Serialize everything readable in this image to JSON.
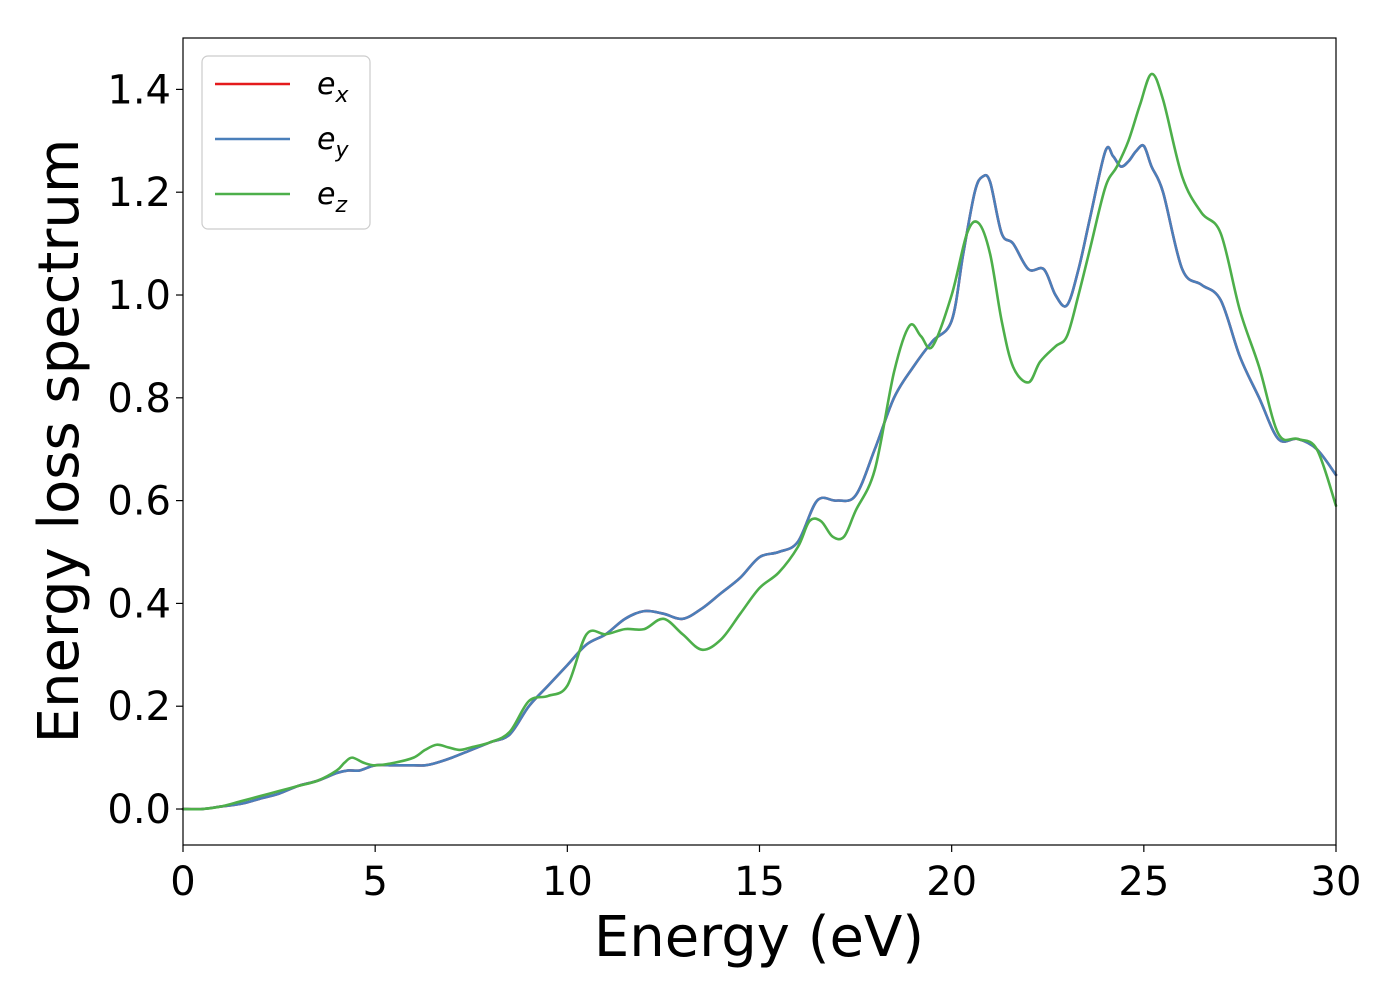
{
  "chart_data": {
    "type": "line",
    "xlabel": "Energy (eV)",
    "ylabel": "Energy loss spectrum",
    "xlim": [
      0,
      30
    ],
    "ylim": [
      -0.07,
      1.5
    ],
    "xticks": [
      0,
      5,
      10,
      15,
      20,
      25,
      30
    ],
    "yticks": [
      0.0,
      0.2,
      0.4,
      0.6,
      0.8,
      1.0,
      1.2,
      1.4
    ],
    "xtick_labels": [
      "0",
      "5",
      "10",
      "15",
      "20",
      "25",
      "30"
    ],
    "ytick_labels": [
      "0.0",
      "0.2",
      "0.4",
      "0.6",
      "0.8",
      "1.0",
      "1.2",
      "1.4"
    ],
    "grid": false,
    "legend_position": "top-left",
    "series": [
      {
        "name": "e_x",
        "legend_base": "e",
        "legend_sub": "x",
        "color": "#e41a1c",
        "x": [
          0,
          0.5,
          1,
          1.5,
          2,
          2.5,
          3,
          3.5,
          4,
          4.3,
          4.6,
          5,
          5.5,
          6,
          6.3,
          6.6,
          7,
          7.5,
          8,
          8.5,
          9,
          9.5,
          10,
          10.5,
          11,
          11.5,
          12,
          12.5,
          13,
          13.5,
          14,
          14.5,
          15,
          15.5,
          16,
          16.5,
          17,
          17.5,
          18,
          18.5,
          19,
          19.5,
          20,
          20.3,
          20.6,
          20.8,
          21,
          21.3,
          21.6,
          22,
          22.4,
          22.7,
          23,
          23.3,
          23.6,
          24,
          24.2,
          24.4,
          24.6,
          24.8,
          25,
          25.2,
          25.5,
          26,
          26.5,
          27,
          27.5,
          28,
          28.5,
          29,
          29.5,
          30
        ],
        "y": [
          0.0,
          0.0,
          0.005,
          0.01,
          0.02,
          0.03,
          0.045,
          0.055,
          0.07,
          0.075,
          0.075,
          0.085,
          0.085,
          0.085,
          0.085,
          0.09,
          0.1,
          0.115,
          0.13,
          0.145,
          0.2,
          0.24,
          0.28,
          0.32,
          0.34,
          0.37,
          0.385,
          0.38,
          0.37,
          0.39,
          0.42,
          0.45,
          0.49,
          0.5,
          0.52,
          0.6,
          0.6,
          0.61,
          0.7,
          0.8,
          0.86,
          0.91,
          0.95,
          1.08,
          1.2,
          1.23,
          1.22,
          1.12,
          1.1,
          1.05,
          1.05,
          1.0,
          0.98,
          1.05,
          1.15,
          1.28,
          1.27,
          1.25,
          1.26,
          1.28,
          1.29,
          1.25,
          1.2,
          1.05,
          1.02,
          0.99,
          0.88,
          0.8,
          0.72,
          0.72,
          0.7,
          0.65
        ]
      },
      {
        "name": "e_y",
        "legend_base": "e",
        "legend_sub": "y",
        "color": "#4a7fba",
        "x": [
          0,
          0.5,
          1,
          1.5,
          2,
          2.5,
          3,
          3.5,
          4,
          4.3,
          4.6,
          5,
          5.5,
          6,
          6.3,
          6.6,
          7,
          7.5,
          8,
          8.5,
          9,
          9.5,
          10,
          10.5,
          11,
          11.5,
          12,
          12.5,
          13,
          13.5,
          14,
          14.5,
          15,
          15.5,
          16,
          16.5,
          17,
          17.5,
          18,
          18.5,
          19,
          19.5,
          20,
          20.3,
          20.6,
          20.8,
          21,
          21.3,
          21.6,
          22,
          22.4,
          22.7,
          23,
          23.3,
          23.6,
          24,
          24.2,
          24.4,
          24.6,
          24.8,
          25,
          25.2,
          25.5,
          26,
          26.5,
          27,
          27.5,
          28,
          28.5,
          29,
          29.5,
          30
        ],
        "y": [
          0.0,
          0.0,
          0.005,
          0.01,
          0.02,
          0.03,
          0.045,
          0.055,
          0.07,
          0.075,
          0.075,
          0.085,
          0.085,
          0.085,
          0.085,
          0.09,
          0.1,
          0.115,
          0.13,
          0.145,
          0.2,
          0.24,
          0.28,
          0.32,
          0.34,
          0.37,
          0.385,
          0.38,
          0.37,
          0.39,
          0.42,
          0.45,
          0.49,
          0.5,
          0.52,
          0.6,
          0.6,
          0.61,
          0.7,
          0.8,
          0.86,
          0.91,
          0.95,
          1.08,
          1.2,
          1.23,
          1.22,
          1.12,
          1.1,
          1.05,
          1.05,
          1.0,
          0.98,
          1.05,
          1.15,
          1.28,
          1.27,
          1.25,
          1.26,
          1.28,
          1.29,
          1.25,
          1.2,
          1.05,
          1.02,
          0.99,
          0.88,
          0.8,
          0.72,
          0.72,
          0.7,
          0.65
        ]
      },
      {
        "name": "e_z",
        "legend_base": "e",
        "legend_sub": "z",
        "color": "#4daf4a",
        "x": [
          0,
          0.5,
          1,
          1.5,
          2,
          2.5,
          3,
          3.5,
          4,
          4.2,
          4.4,
          4.7,
          5,
          5.5,
          6,
          6.3,
          6.6,
          6.9,
          7.2,
          7.5,
          8,
          8.5,
          9,
          9.5,
          10,
          10.5,
          11,
          11.5,
          12,
          12.5,
          13,
          13.5,
          14,
          14.5,
          15,
          15.5,
          16,
          16.3,
          16.6,
          16.9,
          17.2,
          17.5,
          18,
          18.5,
          18.9,
          19.2,
          19.5,
          20,
          20.4,
          20.7,
          21,
          21.3,
          21.6,
          22,
          22.3,
          22.7,
          23,
          23.3,
          23.6,
          24,
          24.3,
          24.6,
          24.9,
          25.2,
          25.5,
          26,
          26.5,
          27,
          27.5,
          28,
          28.5,
          29,
          29.5,
          30
        ],
        "y": [
          0.0,
          0.0,
          0.005,
          0.015,
          0.025,
          0.035,
          0.045,
          0.055,
          0.075,
          0.09,
          0.1,
          0.09,
          0.085,
          0.09,
          0.1,
          0.115,
          0.125,
          0.12,
          0.115,
          0.12,
          0.13,
          0.15,
          0.21,
          0.22,
          0.24,
          0.34,
          0.34,
          0.35,
          0.35,
          0.37,
          0.34,
          0.31,
          0.33,
          0.38,
          0.43,
          0.46,
          0.51,
          0.56,
          0.56,
          0.53,
          0.53,
          0.58,
          0.66,
          0.85,
          0.94,
          0.92,
          0.9,
          1.0,
          1.12,
          1.14,
          1.08,
          0.95,
          0.86,
          0.83,
          0.87,
          0.9,
          0.92,
          1.0,
          1.09,
          1.21,
          1.25,
          1.3,
          1.37,
          1.43,
          1.38,
          1.23,
          1.16,
          1.12,
          0.97,
          0.86,
          0.73,
          0.72,
          0.7,
          0.59
        ]
      }
    ]
  }
}
